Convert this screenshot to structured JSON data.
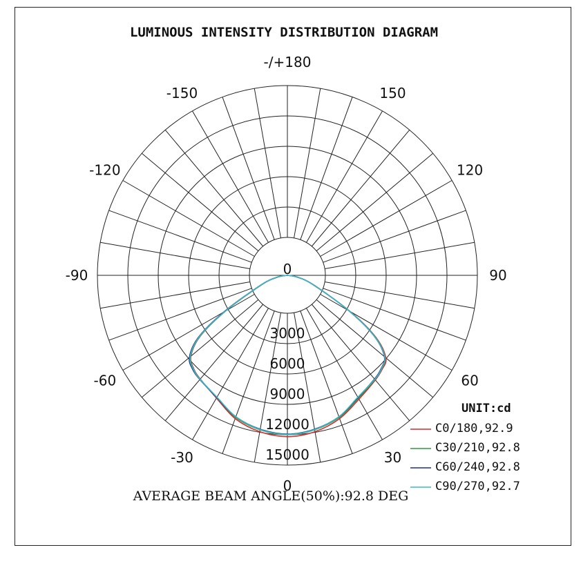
{
  "chart_data": {
    "type": "polar",
    "title": "LUMINOUS INTENSITY DISTRIBUTION DIAGRAM",
    "angle_labels": [
      {
        "angle": 180,
        "text": "-/+180"
      },
      {
        "angle": -150,
        "text": "-150"
      },
      {
        "angle": 150,
        "text": "150"
      },
      {
        "angle": -120,
        "text": "-120"
      },
      {
        "angle": 120,
        "text": "120"
      },
      {
        "angle": -90,
        "text": "-90"
      },
      {
        "angle": 90,
        "text": "90"
      },
      {
        "angle": -60,
        "text": "-60"
      },
      {
        "angle": 60,
        "text": "60"
      },
      {
        "angle": -30,
        "text": "-30"
      },
      {
        "angle": 30,
        "text": "30"
      },
      {
        "angle": 0,
        "text": "0"
      }
    ],
    "radial_labels": [
      "0",
      "3000",
      "6000",
      "9000",
      "12000",
      "15000"
    ],
    "radial_ticks": [
      0,
      3000,
      6000,
      9000,
      12000,
      15000
    ],
    "r_min": 3000,
    "r_max": 15000,
    "angle_step": 10,
    "unit_label": "UNIT:cd",
    "series": [
      {
        "name": "C0/180,92.9",
        "color": "#d42a2a",
        "angles": [
          -90,
          -80,
          -70,
          -60,
          -55,
          -50,
          -45,
          -40,
          -30,
          -20,
          -10,
          0,
          10,
          20,
          30,
          40,
          45,
          50,
          55,
          60,
          70,
          80,
          90
        ],
        "values": [
          0,
          760,
          2140,
          5600,
          8420,
          9950,
          10450,
          10700,
          11200,
          12050,
          12550,
          12750,
          12550,
          12050,
          11300,
          10800,
          10550,
          10150,
          8500,
          5700,
          2200,
          780,
          0
        ]
      },
      {
        "name": "C30/210,92.8",
        "color": "#2a9a3a",
        "angles": [
          -90,
          -80,
          -70,
          -60,
          -55,
          -50,
          -45,
          -40,
          -30,
          -20,
          -10,
          0,
          10,
          20,
          30,
          40,
          45,
          50,
          55,
          60,
          70,
          80,
          90
        ],
        "values": [
          0,
          770,
          2160,
          5650,
          8480,
          9980,
          10480,
          10720,
          11150,
          11950,
          12400,
          12600,
          12400,
          11950,
          11200,
          10750,
          10500,
          10050,
          8420,
          5650,
          2170,
          775,
          0
        ]
      },
      {
        "name": "C60/240,92.8",
        "color": "#1f2f8c",
        "angles": [
          -90,
          -80,
          -70,
          -60,
          -55,
          -50,
          -45,
          -40,
          -30,
          -20,
          -10,
          0,
          10,
          20,
          30,
          40,
          45,
          50,
          55,
          60,
          70,
          80,
          90
        ],
        "values": [
          0,
          790,
          2220,
          5800,
          8600,
          10100,
          10550,
          10750,
          11150,
          11900,
          12350,
          12550,
          12350,
          11900,
          11150,
          10700,
          10450,
          10000,
          8350,
          5600,
          2150,
          770,
          0
        ]
      },
      {
        "name": "C90/270,92.7",
        "color": "#3ab8c8",
        "angles": [
          -90,
          -80,
          -70,
          -60,
          -55,
          -50,
          -45,
          -40,
          -30,
          -20,
          -10,
          0,
          10,
          20,
          30,
          40,
          45,
          50,
          55,
          60,
          70,
          80,
          90
        ],
        "values": [
          0,
          780,
          2190,
          5700,
          8520,
          10020,
          10500,
          10730,
          11120,
          11900,
          12380,
          12580,
          12380,
          11900,
          11120,
          10730,
          10480,
          10030,
          8380,
          5620,
          2160,
          772,
          0
        ]
      }
    ],
    "footer": "AVERAGE BEAM ANGLE(50%):92.8 DEG"
  }
}
